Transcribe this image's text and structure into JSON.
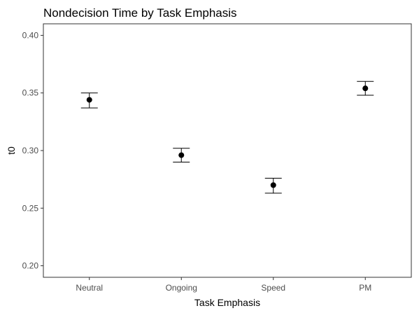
{
  "chart_data": {
    "type": "scatter",
    "title": "Nondecision Time by Task Emphasis",
    "xlabel": "Task Emphasis",
    "ylabel": "t0",
    "categories": [
      "Neutral",
      "Ongoing",
      "Speed",
      "PM"
    ],
    "series": [
      {
        "values": [
          0.344,
          0.296,
          0.27,
          0.354
        ],
        "error_low": [
          0.337,
          0.29,
          0.263,
          0.348
        ],
        "error_high": [
          0.35,
          0.302,
          0.276,
          0.36
        ]
      }
    ],
    "ylim": [
      0.19,
      0.41
    ],
    "yticks": [
      "0.20",
      "0.25",
      "0.30",
      "0.35",
      "0.40"
    ],
    "grid": false,
    "legend": "none",
    "colors": {
      "point": "#000000",
      "panel_border": "#333333",
      "tick_text": "#4d4d4d"
    }
  }
}
